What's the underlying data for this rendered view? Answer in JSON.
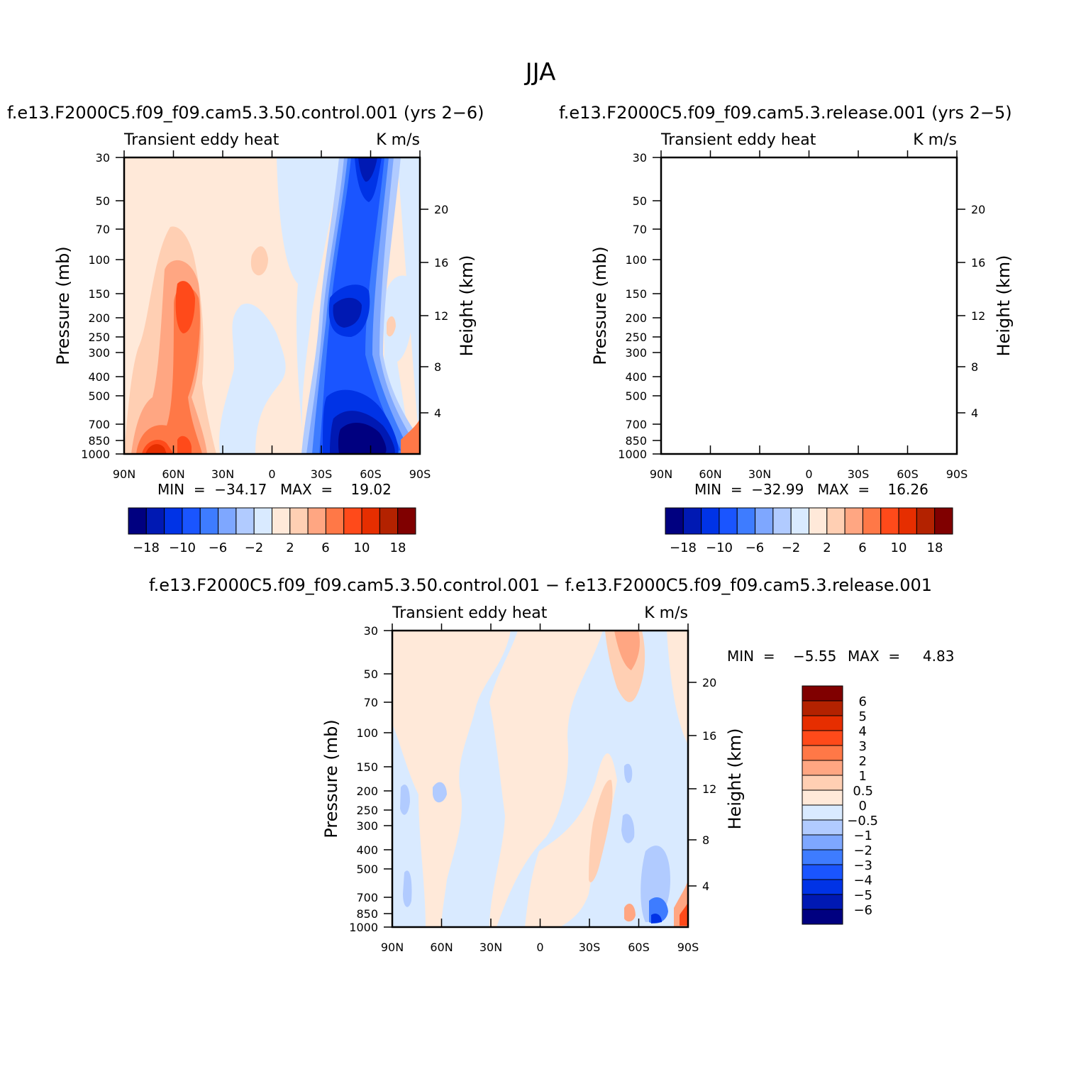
{
  "figure": {
    "title": "JJA"
  },
  "chart_data": [
    {
      "type": "heatmap",
      "title": "f.e13.F2000C5.f09_f09.cam5.3.50.control.001  (yrs  2-6)",
      "subtitle_left": "Transient  eddy  heat",
      "subtitle_right": "K  m/s",
      "ylabel": "Pressure  (mb)",
      "ylabel_right": "Height  (km)",
      "x_ticks": [
        "90N",
        "60N",
        "30N",
        "0",
        "30S",
        "60S",
        "90S"
      ],
      "y_ticks": [
        "30",
        "50",
        "70",
        "100",
        "150",
        "200",
        "250",
        "300",
        "400",
        "500",
        "700",
        "850",
        "1000"
      ],
      "y_ticks_right": [
        "20",
        "16",
        "12",
        "8",
        "4"
      ],
      "min_label": "MIN  =  -34.17",
      "max_label": "MAX  =    19.02",
      "colorbar_labels": [
        "-18",
        "-10",
        "-6",
        "-2",
        "2",
        "6",
        "10",
        "18"
      ]
    },
    {
      "type": "heatmap",
      "title": "f.e13.F2000C5.f09_f09.cam5.3.release.001  (yrs  2-5)",
      "subtitle_left": "Transient  eddy  heat",
      "subtitle_right": "K  m/s",
      "ylabel": "Pressure  (mb)",
      "ylabel_right": "Height  (km)",
      "x_ticks": [
        "90N",
        "60N",
        "30N",
        "0",
        "30S",
        "60S",
        "90S"
      ],
      "y_ticks": [
        "30",
        "50",
        "70",
        "100",
        "150",
        "200",
        "250",
        "300",
        "400",
        "500",
        "700",
        "850",
        "1000"
      ],
      "y_ticks_right": [
        "20",
        "16",
        "12",
        "8",
        "4"
      ],
      "min_label": "MIN  =  -32.99",
      "max_label": "MAX  =    16.26",
      "colorbar_labels": [
        "-18",
        "-10",
        "-6",
        "-2",
        "2",
        "6",
        "10",
        "18"
      ]
    },
    {
      "type": "heatmap",
      "title": "f.e13.F2000C5.f09_f09.cam5.3.50.control.001  -  f.e13.F2000C5.f09_f09.cam5.3.release.001",
      "subtitle_left": "Transient  eddy  heat",
      "subtitle_right": "K  m/s",
      "ylabel": "Pressure  (mb)",
      "ylabel_right": "Height  (km)",
      "x_ticks": [
        "90N",
        "60N",
        "30N",
        "0",
        "30S",
        "60S",
        "90S"
      ],
      "y_ticks": [
        "30",
        "50",
        "70",
        "100",
        "150",
        "200",
        "250",
        "300",
        "400",
        "500",
        "700",
        "850",
        "1000"
      ],
      "y_ticks_right": [
        "20",
        "16",
        "12",
        "8",
        "4"
      ],
      "min_label": "MIN  =    -5.55",
      "max_label": "MAX  =     4.83",
      "colorbar_labels": [
        "6",
        "5",
        "4",
        "3",
        "2",
        "1",
        "0.5",
        "0",
        "-0.5",
        "-1",
        "-2",
        "-3",
        "-4",
        "-5",
        "-6"
      ]
    }
  ],
  "colors": {
    "scale": [
      "#000080",
      "#0019b3",
      "#0033e6",
      "#1a55ff",
      "#3e7cff",
      "#7ea7ff",
      "#b1cbff",
      "#d9eaff",
      "#ffe9d9",
      "#ffcfb3",
      "#ffa682",
      "#ff7847",
      "#ff4a1a",
      "#e62e00",
      "#b32200",
      "#800000"
    ]
  }
}
